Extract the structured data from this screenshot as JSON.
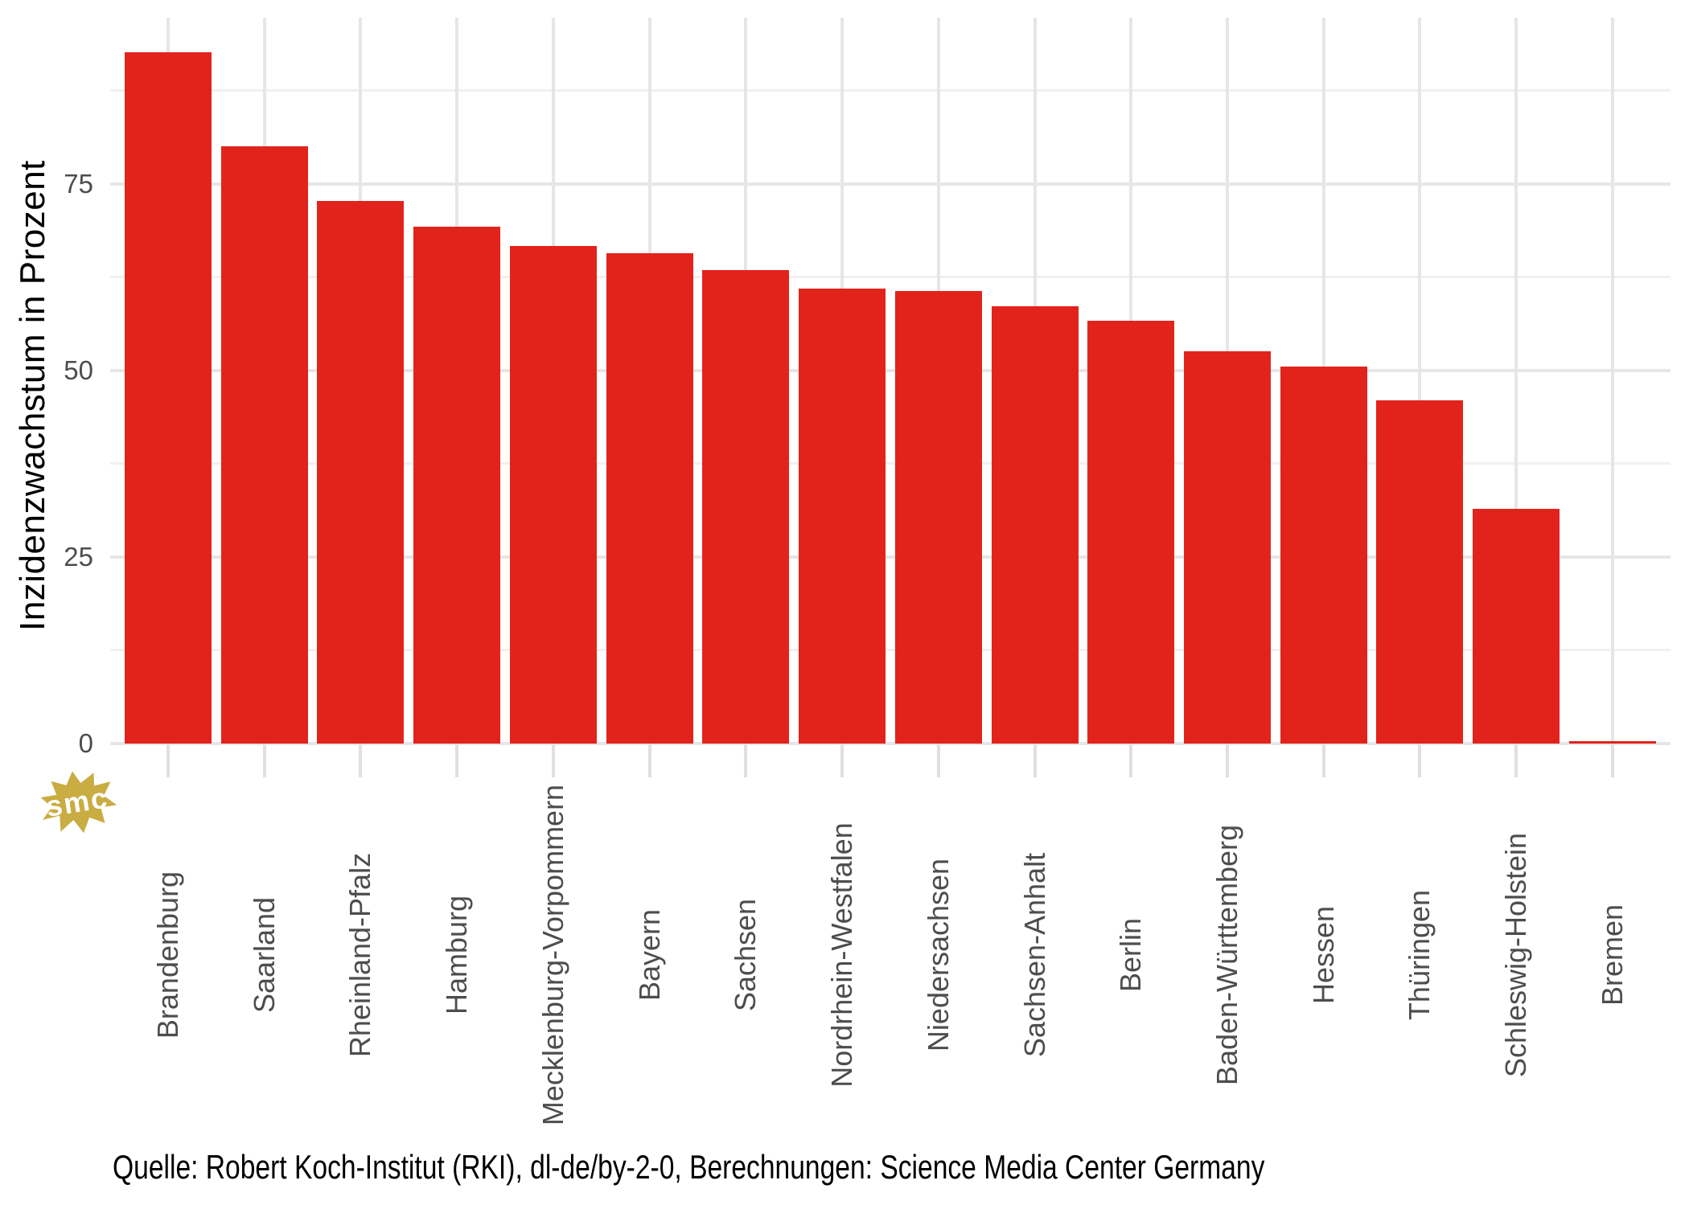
{
  "chart_data": {
    "type": "bar",
    "title": "",
    "ylabel": "Inzidenzwachstum in Prozent",
    "xlabel": "",
    "categories": [
      "Brandenburg",
      "Saarland",
      "Rheinland-Pfalz",
      "Hamburg",
      "Mecklenburg-Vorpommern",
      "Bayern",
      "Sachsen",
      "Nordrhein-Westfalen",
      "Niedersachsen",
      "Sachsen-Anhalt",
      "Berlin",
      "Baden-Württemberg",
      "Hessen",
      "Thüringen",
      "Schleswig-Holstein",
      "Bremen"
    ],
    "values": [
      92.6,
      80.0,
      72.7,
      69.3,
      66.7,
      65.7,
      63.4,
      61.0,
      60.6,
      58.6,
      56.7,
      52.6,
      50.5,
      46.0,
      31.4,
      0.2
    ],
    "ylim": [
      0,
      97.25
    ],
    "yticks": [
      0,
      25,
      50,
      75
    ],
    "minor_gridlines": [
      12.5,
      37.5,
      62.5,
      87.5
    ],
    "grid": "on",
    "legend": "none",
    "bar_color": "#E2231C"
  },
  "footer": {
    "text": "Quelle: Robert Koch-Institut (RKI), dl-de/by-2-0, Berechnungen: Science Media Center Germany"
  },
  "logo": {
    "text": "smc"
  },
  "colors": {
    "background": "#FFFFFF",
    "grid_major": "#E6E6E6",
    "grid_minor": "#F0F0F0",
    "axis_tick": "#E0E0E0",
    "axis_text": "#4D4D4D",
    "title_text": "#000000",
    "logo_gold": "#C9AC42"
  }
}
